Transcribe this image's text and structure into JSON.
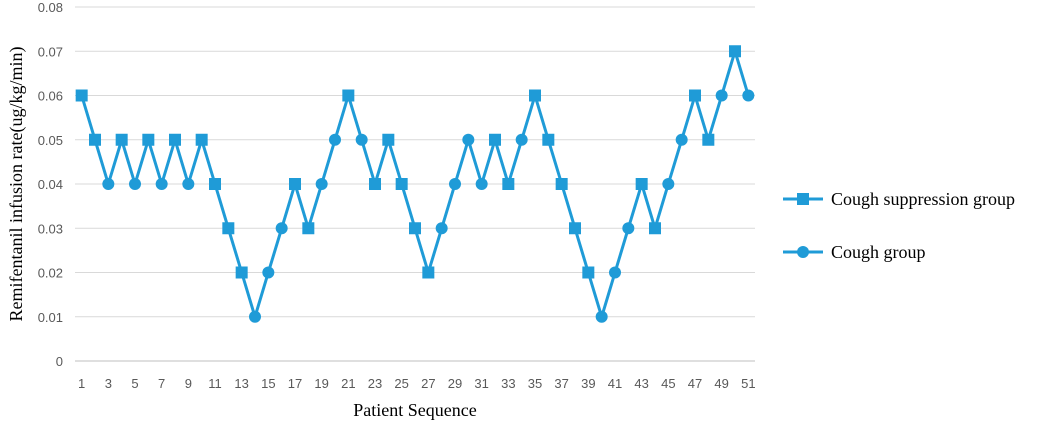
{
  "chart_data": {
    "type": "line",
    "xlabel": "Patient Sequence",
    "ylabel": "Remifentanil infusion rate(ug/kg/min)",
    "ylim": [
      0,
      0.08
    ],
    "yticks": [
      "0",
      "0.01",
      "0.02",
      "0.03",
      "0.04",
      "0.05",
      "0.06",
      "0.07",
      "0.08"
    ],
    "xtick_labels": [
      1,
      3,
      5,
      7,
      9,
      11,
      13,
      15,
      17,
      19,
      21,
      23,
      25,
      27,
      29,
      31,
      33,
      35,
      37,
      39,
      41,
      43,
      45,
      47,
      49,
      51
    ],
    "grid": "horizontal",
    "legend_position": "right",
    "x": [
      1,
      2,
      3,
      4,
      5,
      6,
      7,
      8,
      9,
      10,
      11,
      12,
      13,
      14,
      15,
      16,
      17,
      18,
      19,
      20,
      21,
      22,
      23,
      24,
      25,
      26,
      27,
      28,
      29,
      30,
      31,
      32,
      33,
      34,
      35,
      36,
      37,
      38,
      39,
      40,
      41,
      42,
      43,
      44,
      45,
      46,
      47,
      48,
      49,
      50,
      51
    ],
    "values": [
      0.06,
      0.05,
      0.04,
      0.05,
      0.04,
      0.05,
      0.04,
      0.05,
      0.04,
      0.05,
      0.04,
      0.03,
      0.02,
      0.01,
      0.02,
      0.03,
      0.04,
      0.03,
      0.04,
      0.05,
      0.06,
      0.05,
      0.04,
      0.05,
      0.04,
      0.03,
      0.02,
      0.03,
      0.04,
      0.05,
      0.04,
      0.05,
      0.04,
      0.05,
      0.06,
      0.05,
      0.04,
      0.03,
      0.02,
      0.01,
      0.02,
      0.03,
      0.04,
      0.03,
      0.04,
      0.05,
      0.06,
      0.05,
      0.06,
      0.07,
      0.06
    ],
    "markers": [
      "square",
      "square",
      "circle",
      "square",
      "circle",
      "square",
      "circle",
      "square",
      "circle",
      "square",
      "square",
      "square",
      "square",
      "circle",
      "circle",
      "circle",
      "square",
      "square",
      "circle",
      "circle",
      "square",
      "circle",
      "square",
      "square",
      "square",
      "square",
      "square",
      "circle",
      "circle",
      "circle",
      "circle",
      "square",
      "square",
      "circle",
      "square",
      "square",
      "square",
      "square",
      "square",
      "circle",
      "circle",
      "circle",
      "square",
      "square",
      "circle",
      "circle",
      "square",
      "square",
      "circle",
      "square",
      "circle"
    ],
    "series": [
      {
        "name": "Cough suppression group",
        "marker": "square"
      },
      {
        "name": "Cough group",
        "marker": "circle"
      }
    ],
    "color": "#1f9bd7"
  }
}
